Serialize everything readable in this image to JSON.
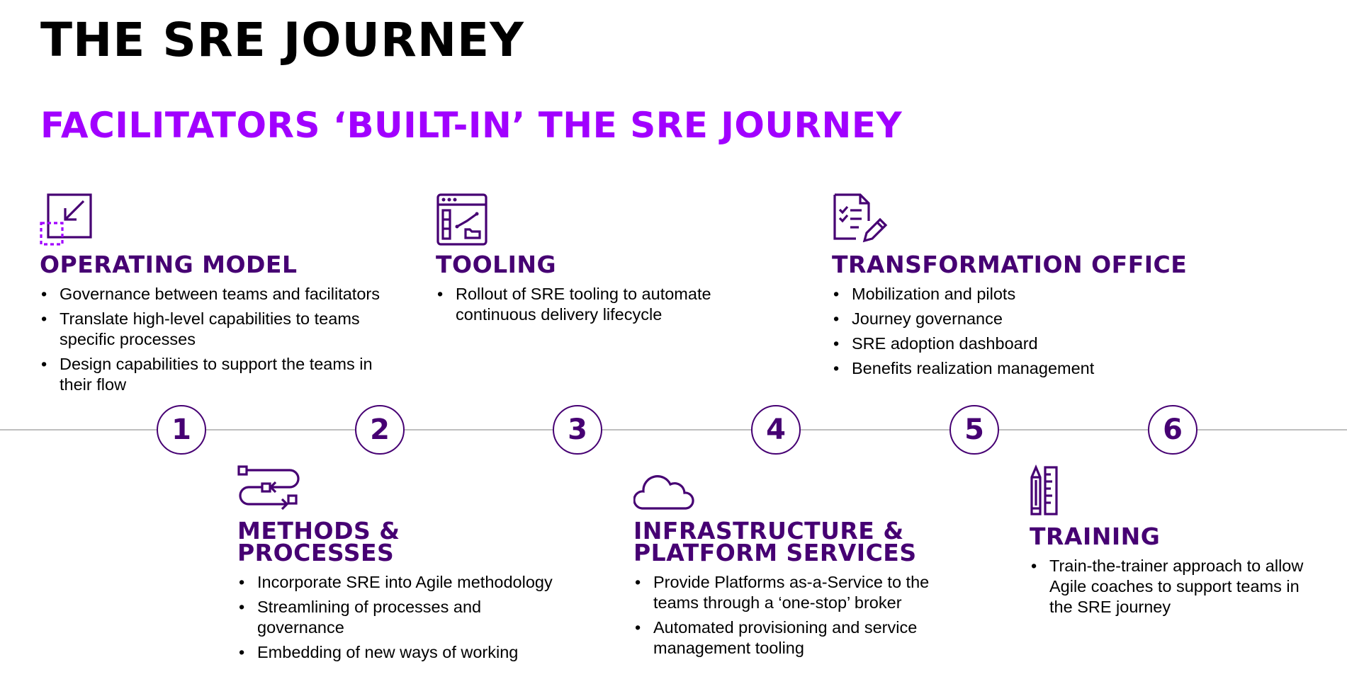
{
  "title": "THE SRE JOURNEY",
  "subtitle": "FACILITATORS ‘BUILT-IN’ THE SRE JOURNEY",
  "colors": {
    "accent": "#a100ff",
    "dark_purple": "#460073",
    "timeline": "#bfbfbf"
  },
  "steps": [
    "1",
    "2",
    "3",
    "4",
    "5",
    "6"
  ],
  "blocks": {
    "operating_model": {
      "icon": "resize-arrow-icon",
      "heading": "OPERATING MODEL",
      "bullets": [
        "Governance between teams and facilitators",
        "Translate high-level capabilities to teams specific processes",
        "Design capabilities to support the teams in their flow"
      ]
    },
    "tooling": {
      "icon": "dashboard-window-icon",
      "heading": "TOOLING",
      "bullets": [
        "Rollout of SRE tooling to automate continuous delivery lifecycle"
      ]
    },
    "transformation_office": {
      "icon": "checklist-pencil-icon",
      "heading": "TRANSFORMATION OFFICE",
      "bullets": [
        "Mobilization and pilots",
        "Journey governance",
        "SRE adoption dashboard",
        "Benefits realization management"
      ]
    },
    "methods_processes": {
      "icon": "process-flow-icon",
      "heading_line1": "METHODS &",
      "heading_line2": "PROCESSES",
      "bullets": [
        "Incorporate SRE into Agile methodology",
        "Streamlining of processes and governance",
        "Embedding of new ways of working"
      ]
    },
    "infrastructure": {
      "icon": "cloud-icon",
      "heading_line1": "INFRASTRUCTURE &",
      "heading_line2": "PLATFORM SERVICES",
      "bullets": [
        "Provide Platforms as-a-Service to the teams through a ‘one-stop’ broker",
        "Automated provisioning and service management tooling"
      ]
    },
    "training": {
      "icon": "pencil-ruler-icon",
      "heading": "TRAINING",
      "bullets": [
        "Train-the-trainer approach to allow Agile coaches to support teams in the SRE journey"
      ]
    }
  }
}
